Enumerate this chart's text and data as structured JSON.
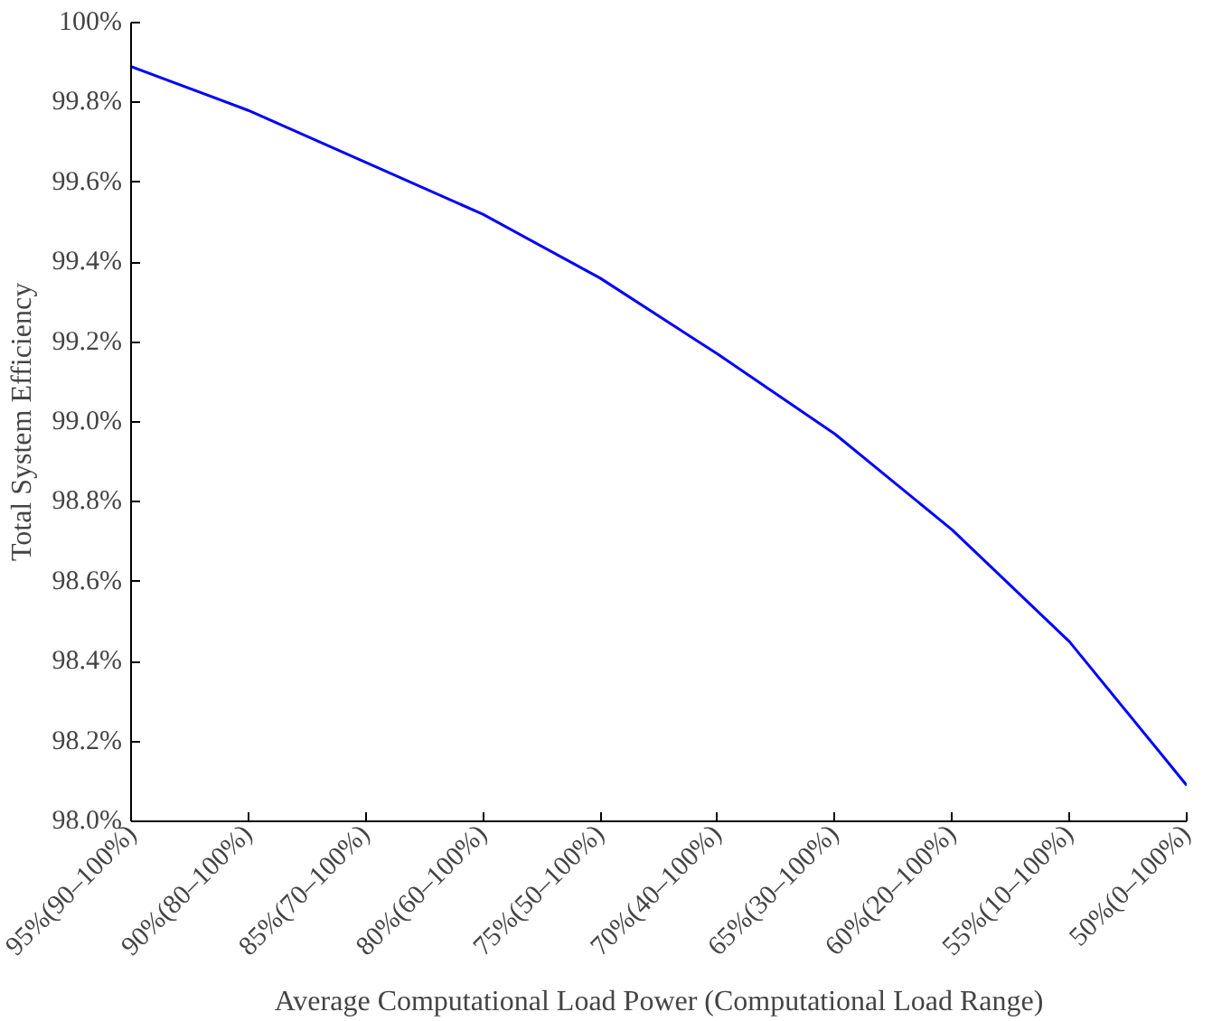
{
  "chart_data": {
    "type": "line",
    "xlabel": "Average Computational Load Power (Computational Load Range)",
    "ylabel": "Total System Efficiency",
    "categories": [
      "95%(90–100%)",
      "90%(80–100%)",
      "85%(70–100%)",
      "80%(60–100%)",
      "75%(50–100%)",
      "70%(40–100%)",
      "65%(30–100%)",
      "60%(20–100%)",
      "55%(10–100%)",
      "50%(0–100%)"
    ],
    "series": [
      {
        "color": "#0000ff",
        "values": [
          99.89,
          99.78,
          99.65,
          99.52,
          99.36,
          99.17,
          98.97,
          98.73,
          98.45,
          98.09
        ]
      }
    ],
    "ylim": [
      98.0,
      100.0
    ],
    "yticks": [
      {
        "value": 98.0,
        "label": "98.0%"
      },
      {
        "value": 98.2,
        "label": "98.2%"
      },
      {
        "value": 98.4,
        "label": "98.4%"
      },
      {
        "value": 98.6,
        "label": "98.6%"
      },
      {
        "value": 98.8,
        "label": "98.8%"
      },
      {
        "value": 99.0,
        "label": "99.0%"
      },
      {
        "value": 99.2,
        "label": "99.2%"
      },
      {
        "value": 99.4,
        "label": "99.4%"
      },
      {
        "value": 99.6,
        "label": "99.6%"
      },
      {
        "value": 99.8,
        "label": "99.8%"
      },
      {
        "value": 100.0,
        "label": "100%"
      }
    ],
    "grid": false,
    "marker": "none",
    "line_style": "solid"
  }
}
